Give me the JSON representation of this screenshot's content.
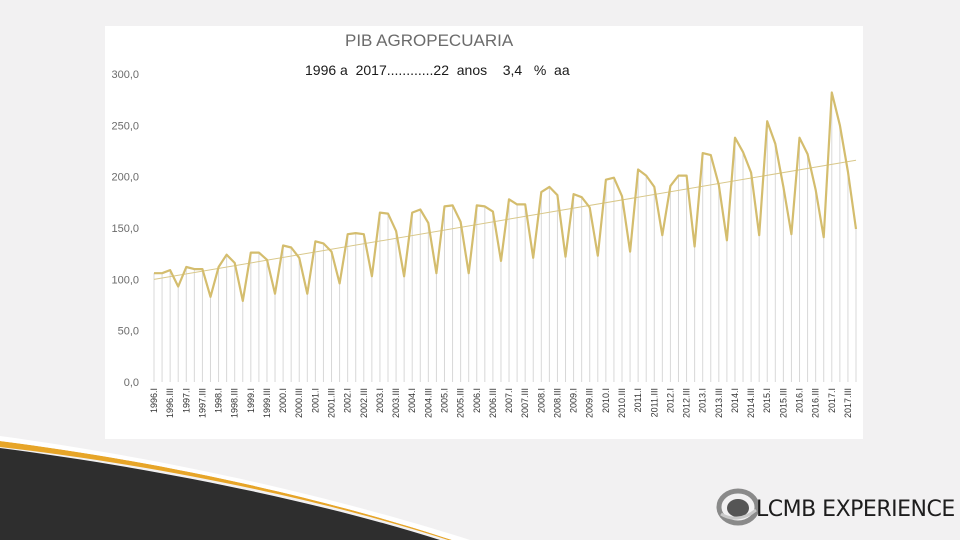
{
  "slide": {
    "brand_name": "LCMB EXPERIENCE",
    "colors": {
      "background": "#f2f1f2",
      "line": "#d4bd6e",
      "trend": "#d9c88a",
      "bars": "#d8d8d8",
      "swoosh_dark": "#2e2e2e",
      "swoosh_gold": "#e7a528"
    }
  },
  "chart_data": {
    "type": "line",
    "title": "PIB AGROPECUARIA",
    "subtitle": "1996 a  2017............22  anos    3,4   %  aa",
    "ylim": [
      0,
      300
    ],
    "yticks": [
      "0,0",
      "50,0",
      "100,0",
      "150,0",
      "200,0",
      "250,0",
      "300,0"
    ],
    "grid": false,
    "x_labels": [
      "1996.I",
      "1996.III",
      "1997.I",
      "1997.III",
      "1998.I",
      "1998.III",
      "1999.I",
      "1999.III",
      "2000.I",
      "2000.III",
      "2001.I",
      "2001.III",
      "2002.I",
      "2002.III",
      "2003.I",
      "2003.III",
      "2004.I",
      "2004.III",
      "2005.I",
      "2005.III",
      "2006.I",
      "2006.III",
      "2007.I",
      "2007.III",
      "2008.I",
      "2008.III",
      "2009.I",
      "2009.III",
      "2010.I",
      "2010.III",
      "2011.I",
      "2011.III",
      "2012.I",
      "2012.III",
      "2013.I",
      "2013.III",
      "2014.I",
      "2014.III",
      "2015.I",
      "2015.III",
      "2016.I",
      "2016.III",
      "2017.I",
      "2017.III"
    ],
    "series": [
      {
        "values": [
          106,
          106,
          109,
          93,
          112,
          110,
          110,
          83,
          112,
          124,
          116,
          79,
          126,
          126,
          119,
          86,
          133,
          131,
          121,
          86,
          137,
          135,
          127,
          96,
          144,
          145,
          144,
          103,
          165,
          164,
          147,
          103,
          165,
          168,
          155,
          106,
          171,
          172,
          156,
          106,
          172,
          171,
          166,
          118,
          178,
          173,
          173,
          121,
          185,
          190,
          182,
          122,
          183,
          180,
          170,
          123,
          197,
          199,
          181,
          127,
          207,
          201,
          190,
          143,
          191,
          201,
          201,
          132,
          223,
          221,
          192,
          138,
          238,
          224,
          204,
          143,
          254,
          232,
          190,
          144,
          238,
          222,
          187,
          141,
          282,
          250,
          205,
          149
        ]
      },
      {
        "type": "trendline",
        "values": [
          100,
          216
        ]
      }
    ]
  }
}
